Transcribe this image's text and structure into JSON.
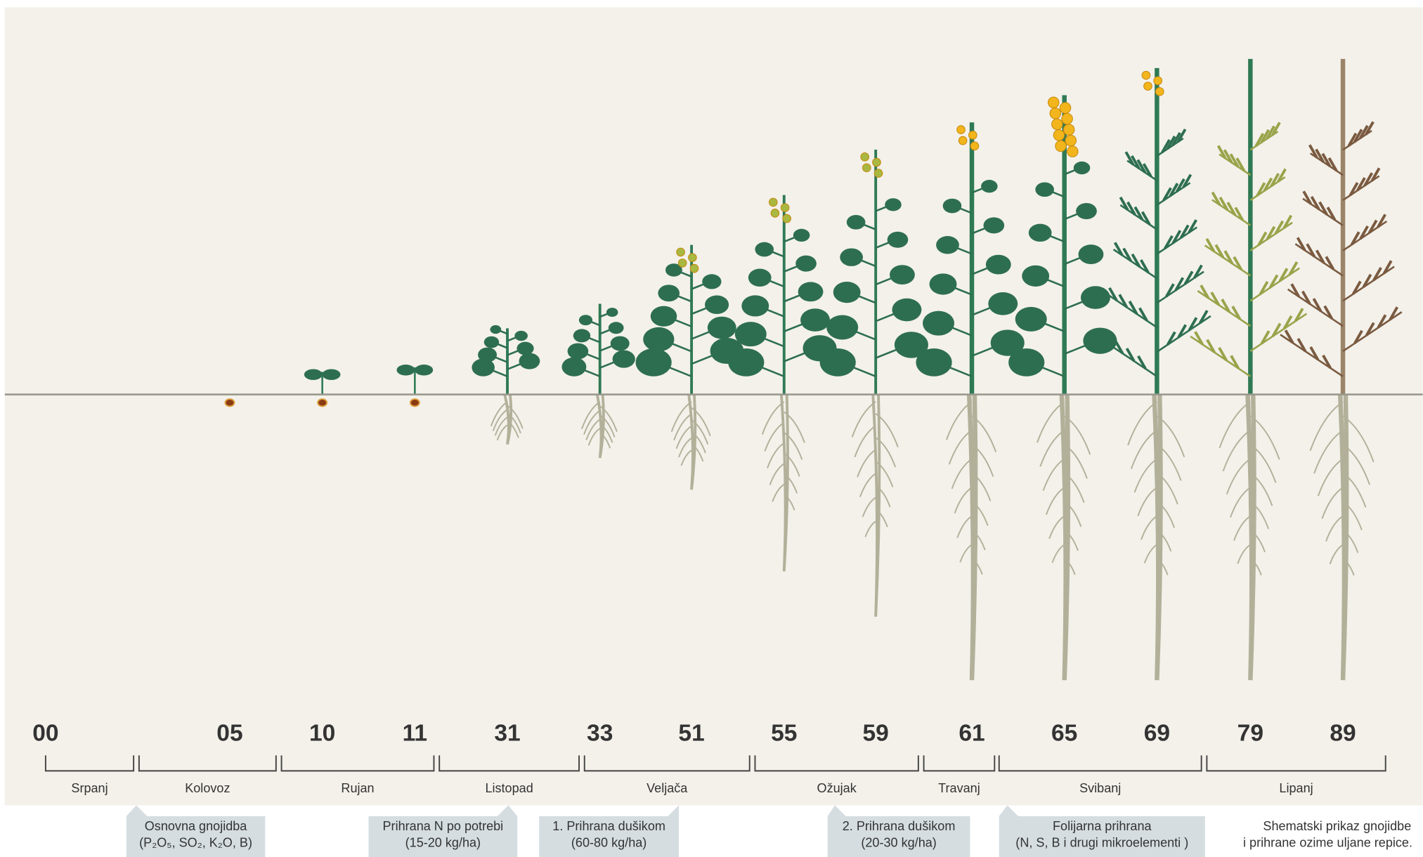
{
  "stages": [
    "00",
    "05",
    "10",
    "11",
    "31",
    "33",
    "51",
    "55",
    "59",
    "61",
    "65",
    "69",
    "79",
    "89"
  ],
  "months": [
    "Srpanj",
    "Kolovoz",
    "Rujan",
    "Listopad",
    "Veljača",
    "Ožujak",
    "Travanj",
    "Svibanj",
    "Lipanj"
  ],
  "fertilization": [
    {
      "line1": "Osnovna gnojidba",
      "line2": "(P₂O₅, SO₂, K₂O, B)"
    },
    {
      "line1": "Prihrana N po potrebi",
      "line2": "(15-20 kg/ha)"
    },
    {
      "line1": "1. Prihrana dušikom",
      "line2": "(60-80 kg/ha)"
    },
    {
      "line1": "2. Prihrana dušikom",
      "line2": "(20-30 kg/ha)"
    },
    {
      "line1": "Folijarna prihrana",
      "line2": "(N, S, B i drugi mikroelementi )"
    }
  ],
  "caption": {
    "line1": "Shematski prikaz gnojidbe",
    "line2": "i prihrane ozime uljane repice."
  }
}
